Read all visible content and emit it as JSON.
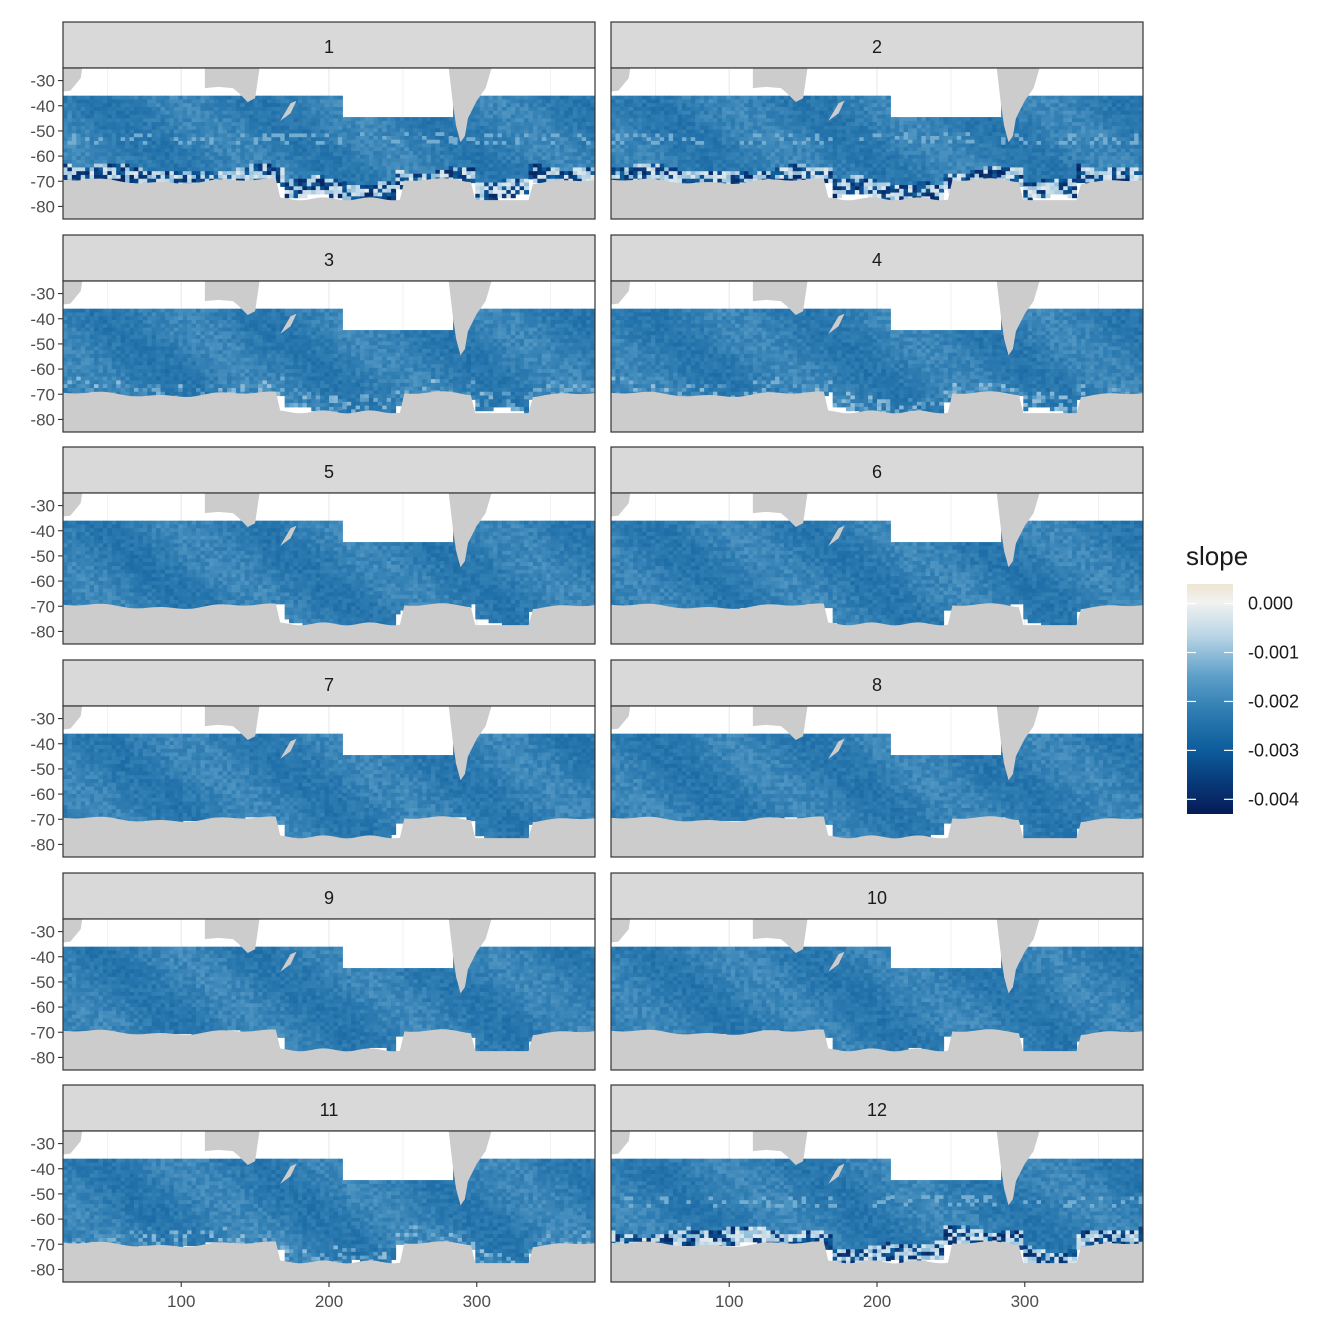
{
  "chart_data": {
    "type": "heatmap",
    "facet_by": "month",
    "facets": [
      {
        "label": "1",
        "coast_mode": 2
      },
      {
        "label": "2",
        "coast_mode": 2
      },
      {
        "label": "3",
        "coast_mode": 1
      },
      {
        "label": "4",
        "coast_mode": 1
      },
      {
        "label": "5",
        "coast_mode": 0
      },
      {
        "label": "6",
        "coast_mode": 0
      },
      {
        "label": "7",
        "coast_mode": 0
      },
      {
        "label": "8",
        "coast_mode": 0
      },
      {
        "label": "9",
        "coast_mode": 0
      },
      {
        "label": "10",
        "coast_mode": 0
      },
      {
        "label": "11",
        "coast_mode": 1
      },
      {
        "label": "12",
        "coast_mode": 2
      }
    ],
    "x_ticks": [
      100,
      200,
      300
    ],
    "y_ticks": [
      -30,
      -40,
      -50,
      -60,
      -70,
      -80
    ],
    "xlim": [
      20,
      380
    ],
    "ylim": [
      -85,
      -25
    ],
    "legend": {
      "title": "slope",
      "position": "right",
      "labels": [
        "0.000",
        "-0.001",
        "-0.002",
        "-0.003",
        "-0.004"
      ],
      "values": [
        0.0,
        -0.001,
        -0.002,
        -0.003,
        -0.004
      ],
      "range": [
        -0.0043,
        0.0004
      ]
    },
    "colors": {
      "land": "#cccccc",
      "strip_fill": "#d9d9d9",
      "panel_border": "#333333",
      "gridline": "#ebebeb"
    }
  }
}
